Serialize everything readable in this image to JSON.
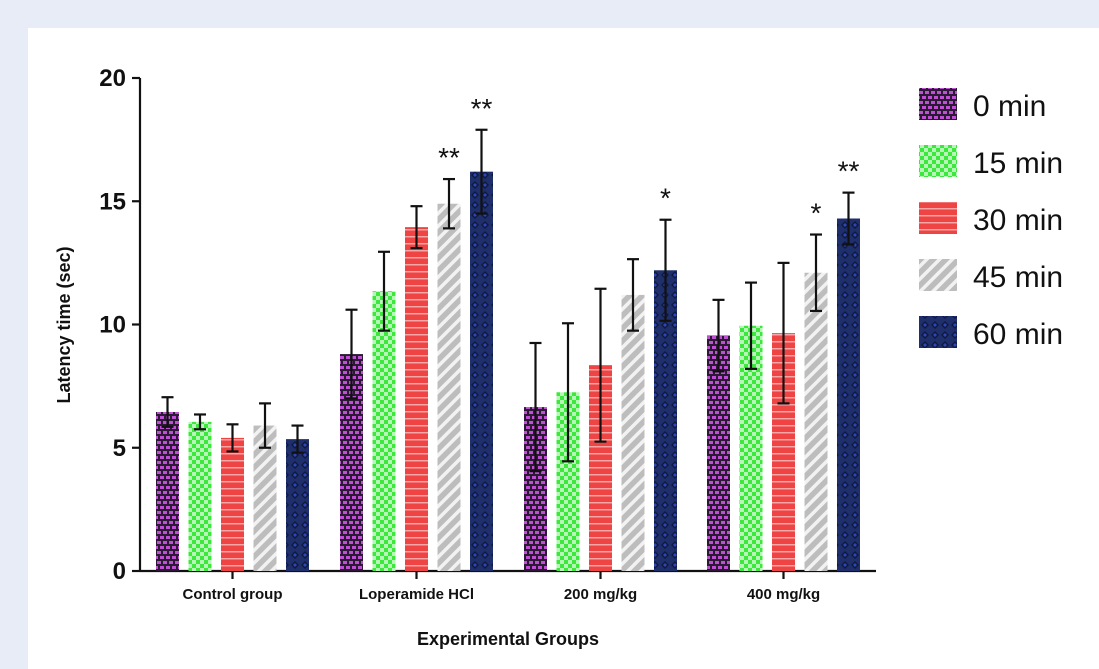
{
  "colors": {
    "page_background": "#e8ecf6",
    "panel_background": "#ffffff",
    "series_0": "#c04fd6",
    "series_15": "#3be83b",
    "series_30": "#ef4444",
    "series_45": "#bdbdbd",
    "series_60": "#1f2f6b"
  },
  "chart_data": {
    "type": "bar",
    "xlabel": "Experimental Groups",
    "ylabel": "Latency time (sec)",
    "ylim": [
      0,
      20
    ],
    "yticks": [
      0,
      5,
      10,
      15,
      20
    ],
    "grid": false,
    "legend_position": "right",
    "categories": [
      "Control group",
      "Loperamide HCl",
      "200 mg/kg",
      "400 mg/kg"
    ],
    "series": [
      {
        "name": "0 min",
        "pattern": "brick",
        "values": [
          6.45,
          8.8,
          6.65,
          9.55
        ],
        "errors": [
          0.6,
          1.8,
          2.6,
          1.45
        ],
        "significance": [
          "",
          "",
          "",
          ""
        ]
      },
      {
        "name": "15 min",
        "pattern": "checker",
        "values": [
          6.05,
          11.35,
          7.25,
          9.95
        ],
        "errors": [
          0.3,
          1.6,
          2.8,
          1.75
        ],
        "significance": [
          "",
          "",
          "",
          ""
        ]
      },
      {
        "name": "30 min",
        "pattern": "horizontal",
        "values": [
          5.4,
          13.95,
          8.35,
          9.65
        ],
        "errors": [
          0.55,
          0.85,
          3.1,
          2.85
        ],
        "significance": [
          "",
          "",
          "",
          ""
        ]
      },
      {
        "name": "45 min",
        "pattern": "diagonal",
        "values": [
          5.9,
          14.9,
          11.2,
          12.1
        ],
        "errors": [
          0.9,
          1.0,
          1.45,
          1.55
        ],
        "significance": [
          "",
          "**",
          "",
          "*"
        ]
      },
      {
        "name": "60 min",
        "pattern": "diamond",
        "values": [
          5.35,
          16.2,
          12.2,
          14.3
        ],
        "errors": [
          0.55,
          1.7,
          2.05,
          1.05
        ],
        "significance": [
          "",
          "**",
          "*",
          "**"
        ]
      }
    ]
  }
}
